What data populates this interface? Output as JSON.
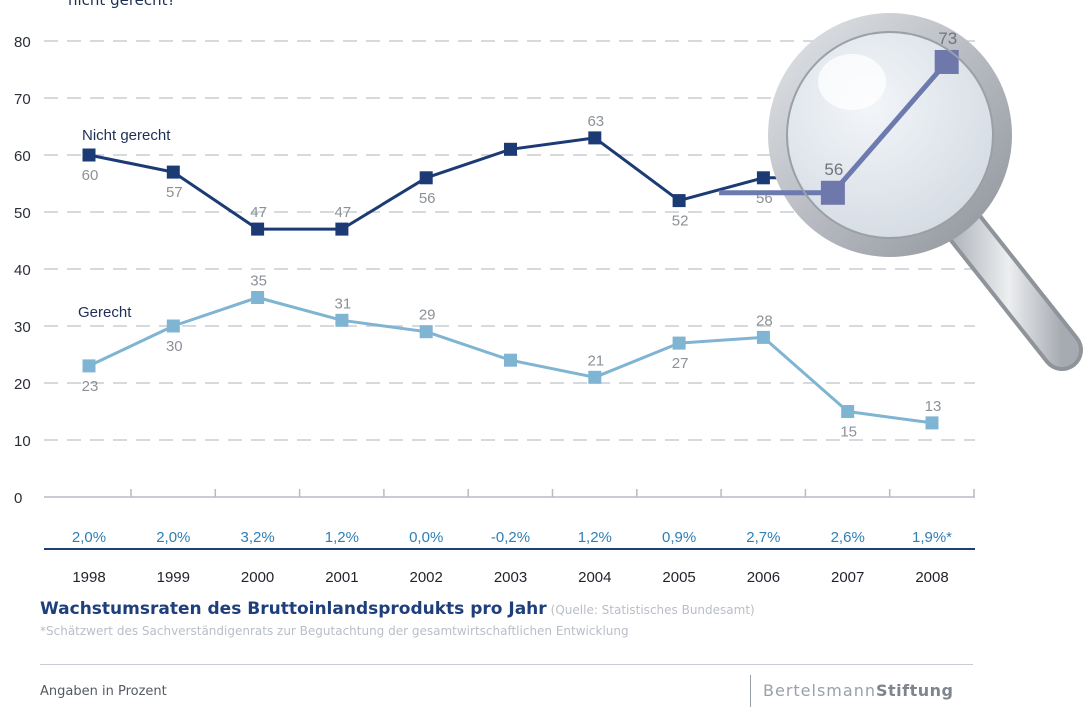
{
  "chart_data": {
    "type": "line",
    "title": "nicht gerecht?",
    "x": [
      1998,
      1999,
      2000,
      2001,
      2002,
      2003,
      2004,
      2005,
      2006,
      2007,
      2008
    ],
    "ylim": [
      0,
      80
    ],
    "yticks": [
      0,
      10,
      20,
      30,
      40,
      50,
      60,
      70,
      80
    ],
    "grid": true,
    "series": [
      {
        "name": "Nicht gerecht",
        "color": "#1c3a74",
        "values": [
          60,
          57,
          47,
          47,
          56,
          61,
          63,
          52,
          56,
          56,
          73
        ],
        "labels": [
          "60",
          "57",
          "47",
          "47",
          "56",
          "",
          "63",
          "52",
          "56",
          "56",
          "73"
        ]
      },
      {
        "name": "Gerecht",
        "color": "#7fb4d2",
        "values": [
          23,
          30,
          35,
          31,
          29,
          24,
          21,
          27,
          28,
          15,
          13
        ],
        "labels": [
          "23",
          "30",
          "35",
          "31",
          "29",
          "",
          "21",
          "27",
          "28",
          "15",
          "13"
        ]
      }
    ],
    "gdp_growth": [
      "2,0%",
      "2,0%",
      "3,2%",
      "1,2%",
      "0,0%",
      "-0,2%",
      "1,2%",
      "0,9%",
      "2,7%",
      "2,6%",
      "1,9%*"
    ],
    "gdp_title": "Wachstumsraten des Bruttoinlandsprodukts pro Jahr",
    "gdp_source": "(Quelle: Statistisches Bundesamt)",
    "footnote": "*Schätzwert des Sachverständigenrats zur Begutachtung der gesamtwirtschaftlichen Entwicklung",
    "unit_note": "Angaben in Prozent"
  },
  "logo": {
    "part1": "Bertelsmann",
    "part2": "Stiftung"
  },
  "colors": {
    "dark": "#1c3a74",
    "light": "#7fb4d2",
    "grid": "#c9cdd3",
    "growth": "#2e7fb5",
    "label": "#8c9198"
  }
}
